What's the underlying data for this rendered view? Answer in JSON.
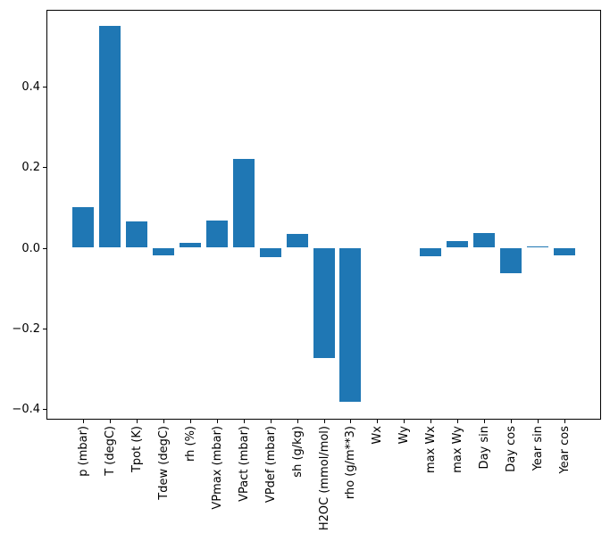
{
  "chart_data": {
    "type": "bar",
    "title": "",
    "xlabel": "",
    "ylabel": "",
    "grid": false,
    "legend": false,
    "bar_color": "#1f77b4",
    "axis_color": "#000000",
    "background_color": "#ffffff",
    "categories": [
      "p (mbar)",
      "T (degC)",
      "Tpot (K)",
      "Tdew (degC)",
      "rh (%)",
      "VPmax (mbar)",
      "VPact (mbar)",
      "VPdef (mbar)",
      "sh (g/kg)",
      "H2OC (mmol/mol)",
      "rho (g/m**3)",
      "Wx",
      "Wy",
      "max Wx",
      "max Wy",
      "Day sin",
      "Day cos",
      "Year sin",
      "Year cos"
    ],
    "values": [
      0.1,
      0.55,
      0.065,
      -0.019,
      0.013,
      0.068,
      0.221,
      -0.024,
      0.035,
      -0.274,
      -0.382,
      0.0,
      0.0,
      -0.022,
      0.017,
      0.037,
      -0.063,
      0.004,
      -0.018
    ],
    "ylim": [
      -0.4266,
      0.5906
    ],
    "yticks": [
      {
        "value": 0.4,
        "label": "0.4"
      },
      {
        "value": 0.2,
        "label": "0.2"
      },
      {
        "value": 0.0,
        "label": "0.0"
      },
      {
        "value": -0.2,
        "label": "−0.2"
      },
      {
        "value": -0.4,
        "label": "−0.4"
      }
    ]
  }
}
